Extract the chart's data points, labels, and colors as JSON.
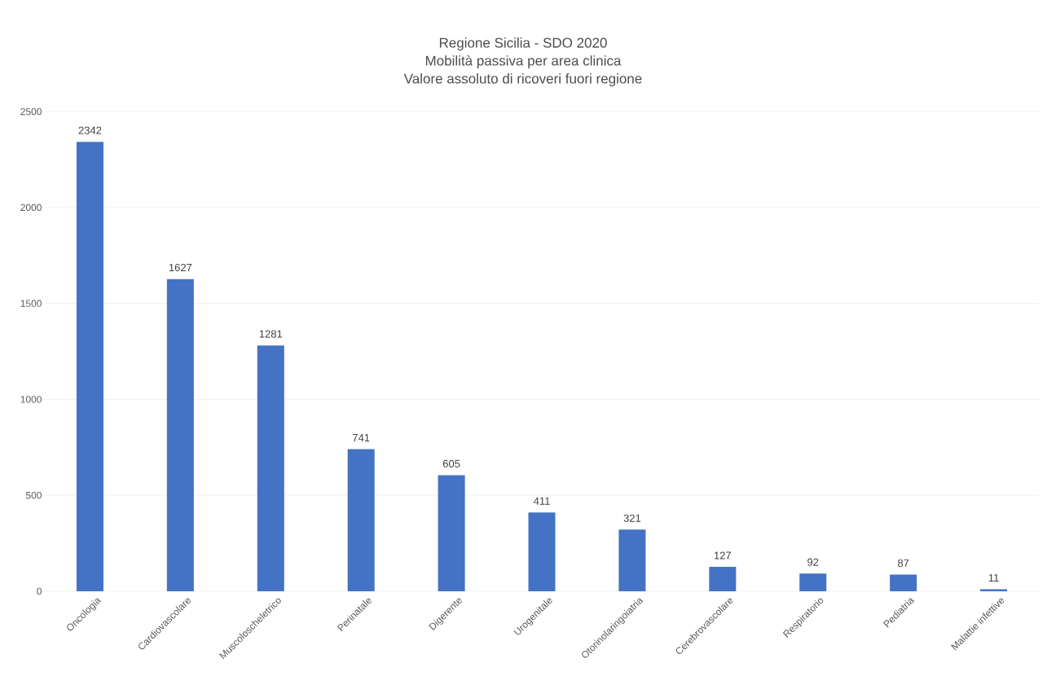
{
  "chart_data": {
    "type": "bar",
    "title": "Regione Sicilia - SDO 2020",
    "subtitle": "Mobilità passiva per area clinica\nValore assoluto di ricoveri fuori regione",
    "categories": [
      "Oncologia",
      "Cardiovascolare",
      "Muscoloscheletrico",
      "Perinatale",
      "Digerente",
      "Urogenitale",
      "Otorinolaringoiatria",
      "Cerebrovascolare",
      "Respiratorio",
      "Pediatria",
      "Malattie infettive"
    ],
    "values": [
      2342,
      1627,
      1281,
      741,
      605,
      411,
      321,
      127,
      92,
      87,
      11
    ],
    "color": "#4472c4",
    "ylim": [
      0,
      2500
    ],
    "yticks": [
      0,
      500,
      1000,
      1500,
      2000,
      2500
    ],
    "grid": "y",
    "data_labels": true
  }
}
